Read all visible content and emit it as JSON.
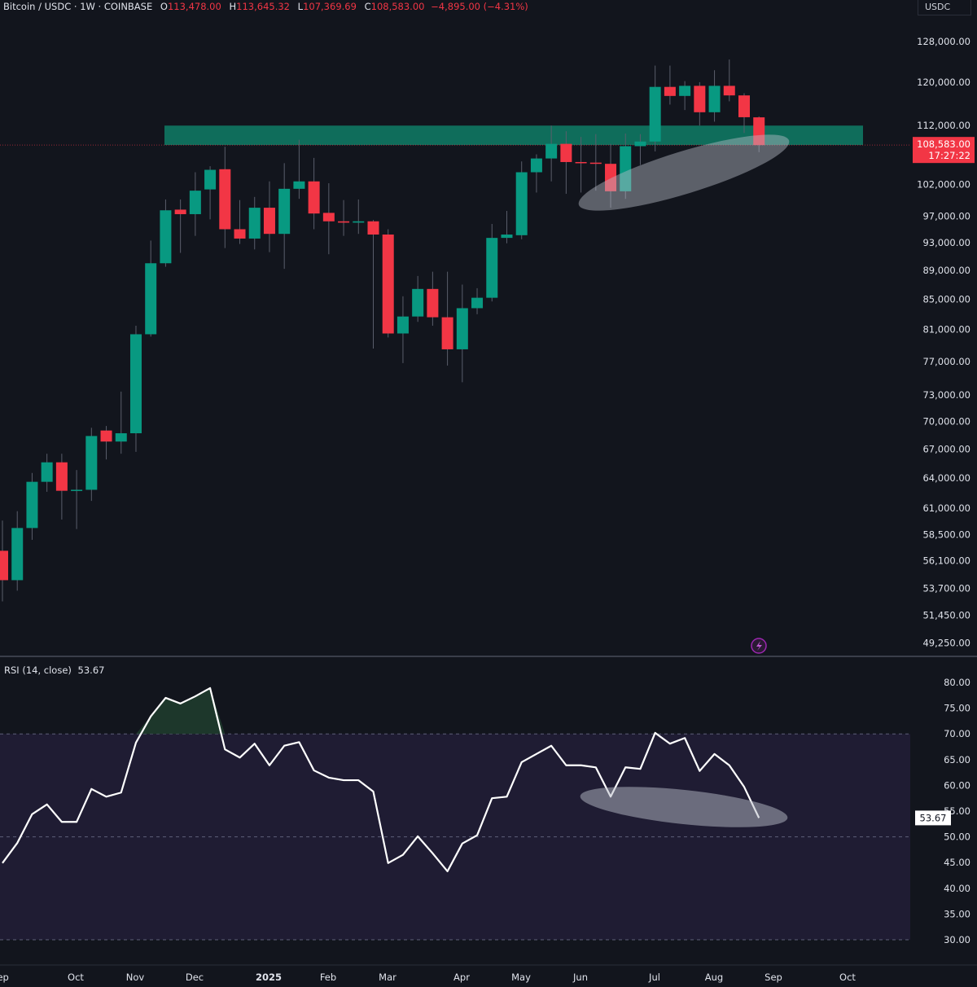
{
  "header": {
    "symbol": "Bitcoin / USDC · 1W · COINBASE",
    "open_label": "O",
    "open": "113,478.00",
    "high_label": "H",
    "high": "113,645.32",
    "low_label": "L",
    "low": "107,369.69",
    "close_label": "C",
    "close": "108,583.00",
    "change": "−4,895.00 (−4.31%)",
    "currency": "USDC"
  },
  "rsi_header": {
    "label": "RSI (14, close)",
    "value": "53.67"
  },
  "colors": {
    "up": "#089981",
    "down": "#f23645",
    "background": "#12151d",
    "zone": "#0f7c66",
    "rsi_band": "#1f1c33",
    "rsi_line": "#ffffff",
    "annotation": "#b8bcc8"
  },
  "icons": {
    "alert": "lightning-icon"
  },
  "chart_data": [
    {
      "type": "candlestick",
      "scale": "log",
      "current_price": {
        "value": 108583,
        "label": "108,583.00",
        "countdown": "17:27:22"
      },
      "y_ticks": [
        {
          "v": 128000,
          "label": "128,000.00"
        },
        {
          "v": 120000,
          "label": "120,000.00"
        },
        {
          "v": 112000,
          "label": "112,000.00"
        },
        {
          "v": 102000,
          "label": "102,000.00"
        },
        {
          "v": 97000,
          "label": "97,000.00"
        },
        {
          "v": 93000,
          "label": "93,000.00"
        },
        {
          "v": 89000,
          "label": "89,000.00"
        },
        {
          "v": 85000,
          "label": "85,000.00"
        },
        {
          "v": 81000,
          "label": "81,000.00"
        },
        {
          "v": 77000,
          "label": "77,000.00"
        },
        {
          "v": 73000,
          "label": "73,000.00"
        },
        {
          "v": 70000,
          "label": "70,000.00"
        },
        {
          "v": 67000,
          "label": "67,000.00"
        },
        {
          "v": 64000,
          "label": "64,000.00"
        },
        {
          "v": 61000,
          "label": "61,000.00"
        },
        {
          "v": 58500,
          "label": "58,500.00"
        },
        {
          "v": 56100,
          "label": "56,100.00"
        },
        {
          "v": 53700,
          "label": "53,700.00"
        },
        {
          "v": 51450,
          "label": "51,450.00"
        },
        {
          "v": 49250,
          "label": "49,250.00"
        }
      ],
      "zone": {
        "from": 108600,
        "to": 112000
      },
      "ohlc": [
        [
          57000,
          54400,
          59800,
          52600
        ],
        [
          54400,
          59100,
          60700,
          53500
        ],
        [
          59100,
          63600,
          64500,
          58000
        ],
        [
          63600,
          65600,
          66500,
          62600
        ],
        [
          65600,
          62700,
          66500,
          59900
        ],
        [
          62700,
          62800,
          64800,
          59000
        ],
        [
          62800,
          68400,
          69300,
          61700
        ],
        [
          69000,
          67800,
          69500,
          65900
        ],
        [
          67800,
          68700,
          73400,
          66500
        ],
        [
          68700,
          80400,
          81500,
          66700
        ],
        [
          80400,
          90000,
          93300,
          80100
        ],
        [
          90000,
          97900,
          99600,
          89500
        ],
        [
          98000,
          97300,
          99600,
          91500
        ],
        [
          97300,
          101000,
          104000,
          94000
        ],
        [
          101200,
          104400,
          105000,
          96500
        ],
        [
          104500,
          95000,
          108300,
          92200
        ],
        [
          95000,
          93600,
          99500,
          92800
        ],
        [
          93600,
          98300,
          100000,
          92000
        ],
        [
          98300,
          94300,
          102500,
          91600
        ],
        [
          94300,
          101300,
          105500,
          89200
        ],
        [
          101300,
          102500,
          109500,
          99700
        ],
        [
          102500,
          97400,
          106400,
          95000
        ],
        [
          97500,
          96200,
          102200,
          91300
        ],
        [
          96200,
          96000,
          99500,
          94000
        ],
        [
          96000,
          96200,
          99600,
          94300
        ],
        [
          96200,
          94200,
          96400,
          78600
        ],
        [
          94200,
          80500,
          95000,
          80000
        ],
        [
          80500,
          82700,
          85400,
          76800
        ],
        [
          82700,
          86400,
          88200,
          82000
        ],
        [
          86400,
          82600,
          88800,
          81500
        ],
        [
          82600,
          78500,
          88800,
          76500
        ],
        [
          78500,
          83800,
          87000,
          74500
        ],
        [
          83800,
          85200,
          86500,
          83000
        ],
        [
          85200,
          93700,
          95800,
          84700
        ],
        [
          93700,
          94200,
          97800,
          92900
        ],
        [
          94100,
          104000,
          105800,
          93500
        ],
        [
          104000,
          106300,
          107000,
          100700
        ],
        [
          106300,
          108800,
          112000,
          102500
        ],
        [
          108800,
          105700,
          111000,
          100500
        ],
        [
          105700,
          105600,
          110000,
          100700
        ],
        [
          105600,
          105400,
          110500,
          101000
        ],
        [
          105400,
          100900,
          108800,
          98300
        ],
        [
          100900,
          108400,
          110600,
          99700
        ],
        [
          108400,
          109200,
          110500,
          105200
        ],
        [
          109200,
          119100,
          123200,
          107500
        ],
        [
          119100,
          117400,
          123200,
          115800
        ],
        [
          117400,
          119300,
          120200,
          114800
        ],
        [
          119300,
          114400,
          120000,
          112000
        ],
        [
          114400,
          119300,
          122300,
          112700
        ],
        [
          119300,
          117500,
          124400,
          116400
        ],
        [
          117500,
          113500,
          117900,
          110700
        ],
        [
          113478,
          108583,
          113645,
          107370
        ]
      ]
    },
    {
      "type": "line",
      "name": "RSI (14, close)",
      "ylim": [
        30,
        80
      ],
      "bands": {
        "upper": 70,
        "middle": 50,
        "lower": 30
      },
      "y_ticks": [
        "80.00",
        "75.00",
        "70.00",
        "65.00",
        "60.00",
        "55.00",
        "50.00",
        "45.00",
        "40.00",
        "35.00",
        "30.00"
      ],
      "last_label": "53.67",
      "values": [
        44.9,
        48.8,
        54.4,
        56.3,
        52.9,
        52.9,
        59.3,
        57.8,
        58.6,
        68.3,
        73.4,
        77.0,
        75.9,
        77.3,
        78.9,
        67.0,
        65.4,
        68.1,
        63.9,
        67.7,
        68.4,
        62.9,
        61.5,
        61.0,
        61.0,
        58.8,
        44.9,
        46.5,
        50.1,
        46.8,
        43.3,
        48.7,
        50.3,
        57.5,
        57.8,
        64.5,
        66.1,
        67.7,
        63.9,
        63.9,
        63.5,
        57.8,
        63.5,
        63.2,
        70.2,
        68.1,
        69.2,
        62.8,
        66.1,
        63.9,
        59.7,
        53.67
      ]
    }
  ],
  "x_axis": {
    "labels": [
      "Sep",
      "Oct",
      "Nov",
      "Dec",
      "2025",
      "Feb",
      "Mar",
      "Apr",
      "May",
      "Jun",
      "Jul",
      "Aug",
      "Sep",
      "Oct"
    ]
  }
}
